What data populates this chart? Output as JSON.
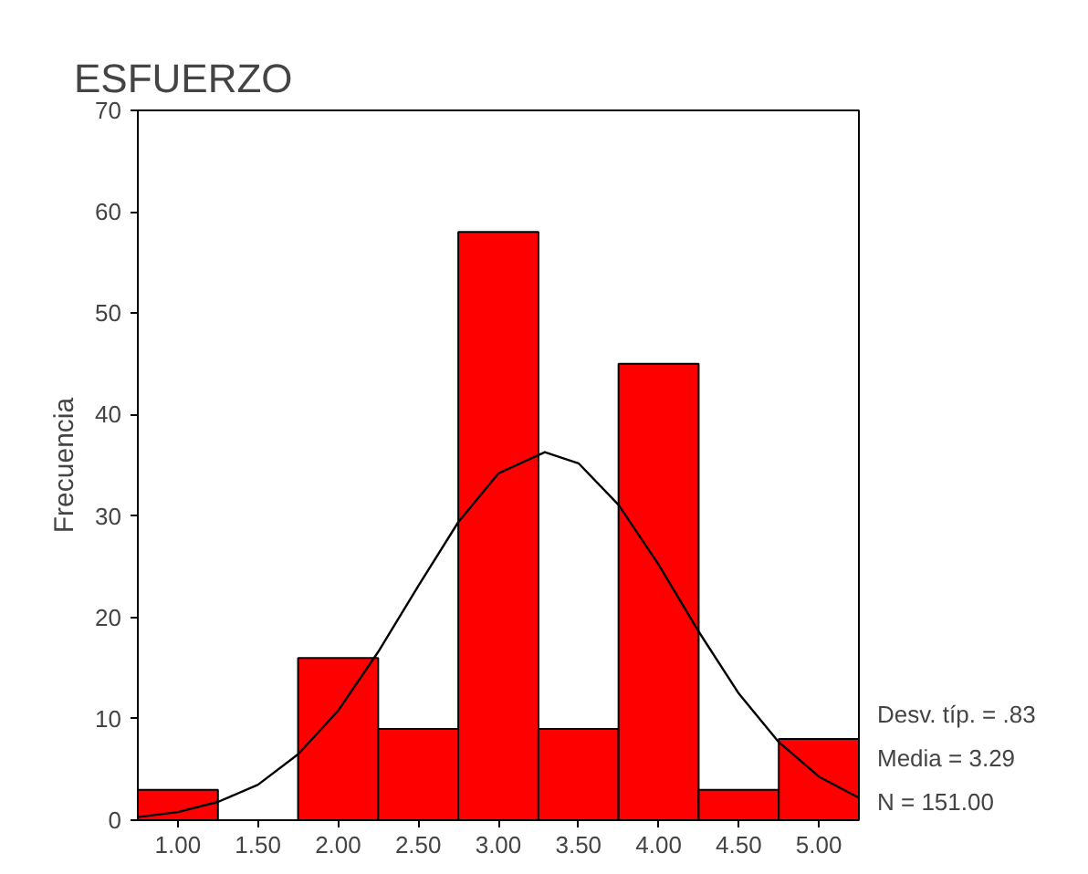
{
  "chart_data": {
    "type": "histogram",
    "title": "ESFUERZO",
    "ylabel": "Frecuencia",
    "bins": [
      0.75,
      1.25,
      1.75,
      2.25,
      2.75,
      3.25,
      3.75,
      4.25,
      4.75,
      5.25
    ],
    "values": [
      3,
      0,
      16,
      9,
      58,
      9,
      45,
      3,
      8
    ],
    "color": "#ff0000",
    "series": [
      {
        "type": "line",
        "color": "#000000",
        "x": [
          0.75,
          1.0,
          1.25,
          1.5,
          1.75,
          2.0,
          2.25,
          2.5,
          2.75,
          3.0,
          3.29,
          3.5,
          3.75,
          4.0,
          4.25,
          4.5,
          4.75,
          5.0,
          5.25
        ],
        "values": [
          0.3,
          0.8,
          1.8,
          3.5,
          6.5,
          10.8,
          16.6,
          23.1,
          29.4,
          34.2,
          36.3,
          35.2,
          31.1,
          25.2,
          18.6,
          12.5,
          7.7,
          4.3,
          2.2
        ]
      }
    ],
    "xlim": [
      0.75,
      5.25
    ],
    "ylim": [
      0,
      70
    ],
    "xticks": [
      {
        "value": 1,
        "label": "1.00"
      },
      {
        "value": 1.5,
        "label": "1.50"
      },
      {
        "value": 2,
        "label": "2.00"
      },
      {
        "value": 2.5,
        "label": "2.50"
      },
      {
        "value": 3,
        "label": "3.00"
      },
      {
        "value": 3.5,
        "label": "3.50"
      },
      {
        "value": 4,
        "label": "4.00"
      },
      {
        "value": 4.5,
        "label": "4.50"
      },
      {
        "value": 5,
        "label": "5.00"
      }
    ],
    "yticks": [
      0,
      10,
      20,
      30,
      40,
      50,
      60,
      70
    ],
    "grid": false,
    "annotations": [
      "Desv. típ. = .83",
      "Media = 3.29",
      "N = 151.00"
    ]
  }
}
